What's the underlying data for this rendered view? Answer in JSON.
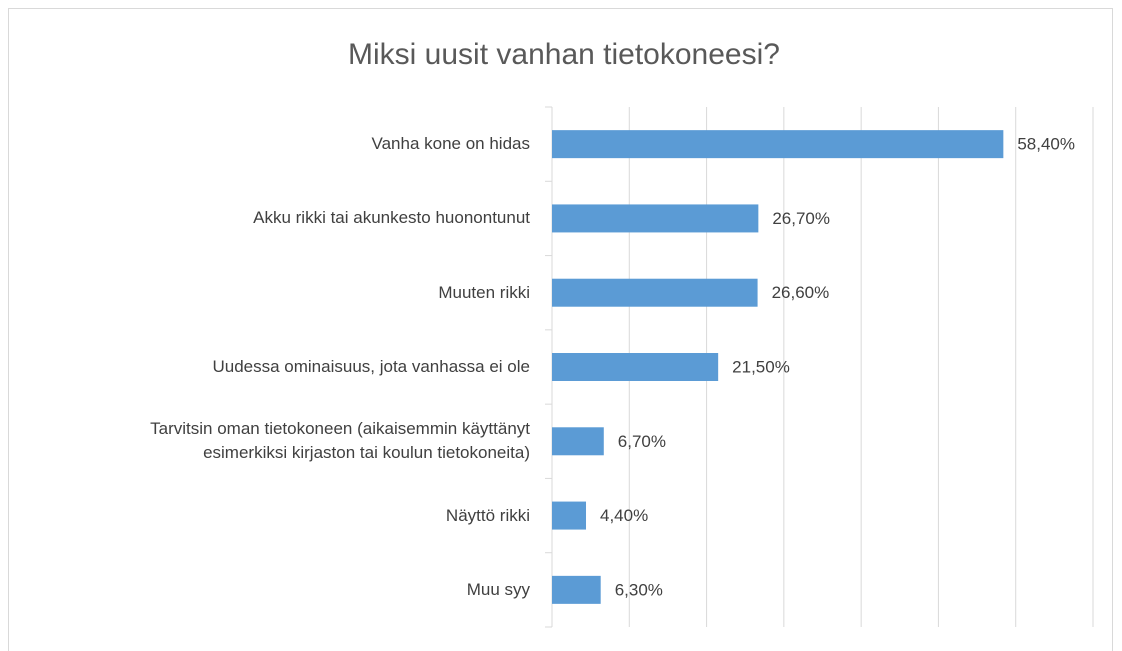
{
  "chart_data": {
    "type": "bar",
    "orientation": "horizontal",
    "title": "Miksi uusit vanhan tietokoneesi?",
    "categories": [
      "Vanha kone on hidas",
      "Akku rikki tai akunkesto huonontunut",
      "Muuten rikki",
      "Uudessa ominaisuus, jota vanhassa ei ole",
      "Tarvitsin oman tietokoneen (aikaisemmin käyttänyt\nesimerkiksi kirjaston tai koulun tietokoneita)",
      "Näyttö rikki",
      "Muu syy"
    ],
    "values": [
      58.4,
      26.7,
      26.6,
      21.5,
      6.7,
      4.4,
      6.3
    ],
    "value_labels": [
      "58,40%",
      "26,70%",
      "26,60%",
      "21,50%",
      "6,70%",
      "4,40%",
      "6,30%"
    ],
    "color": "#5b9bd5",
    "xlim": [
      0,
      70
    ],
    "xticks": [
      0,
      10,
      20,
      30,
      40,
      50,
      60,
      70
    ],
    "grid": true
  }
}
